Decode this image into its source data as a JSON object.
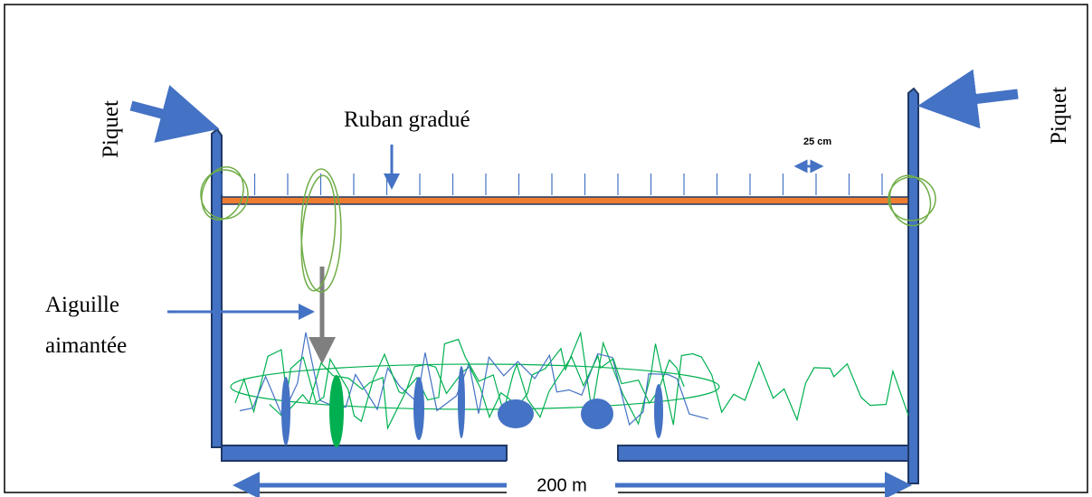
{
  "labels": {
    "piquet_left": "Piquet",
    "piquet_right": "Piquet",
    "ruban": "Ruban gradué",
    "scale": "25 cm",
    "aiguille_1": "Aiguille",
    "aiguille_2": "aimantée",
    "distance": "200 m"
  }
}
